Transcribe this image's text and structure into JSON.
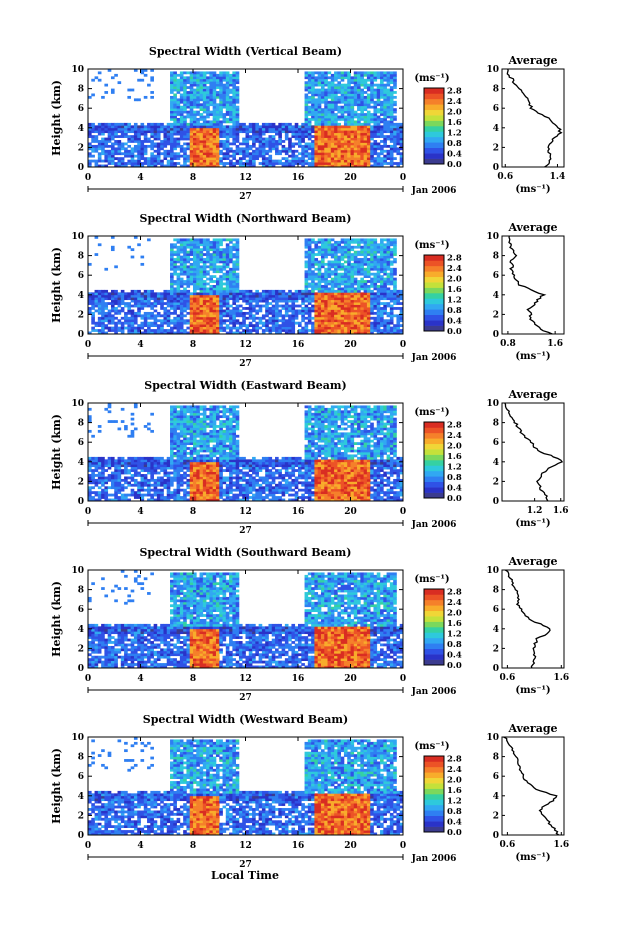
{
  "figure": {
    "xlabel": "Local Time",
    "date_label": "Jan 2006",
    "day_label": "27"
  },
  "colorbar": {
    "unit": "(ms⁻¹)",
    "ticks": [
      "0.0",
      "0.4",
      "0.8",
      "1.2",
      "1.6",
      "2.0",
      "2.4",
      "2.8"
    ],
    "colors": [
      "#3b3b8f",
      "#2a33c8",
      "#2f52e6",
      "#2f7ff2",
      "#31a8f2",
      "#2ec9dc",
      "#35d1a2",
      "#7bd85c",
      "#c4e13a",
      "#f0d637",
      "#f8ac2b",
      "#f5802a",
      "#ec5326",
      "#d92d22"
    ]
  },
  "chart_data": [
    {
      "type": "heatmap",
      "title": "Spectral Width (Vertical Beam)",
      "xlabel": "Local Time",
      "ylabel": "Height (km)",
      "x_ticks": [
        "0",
        "4",
        "8",
        "12",
        "16",
        "20",
        "0"
      ],
      "xlim": [
        0,
        24
      ],
      "y_ticks": [
        "0",
        "2",
        "4",
        "6",
        "8",
        "10"
      ],
      "ylim": [
        0,
        10
      ],
      "colorbar_range": [
        0.0,
        2.9
      ],
      "average_profile": {
        "title": "Average",
        "xlabel": "(ms⁻¹)",
        "x_ticks": [
          "0.6",
          "1.4"
        ],
        "xlim": [
          0.55,
          1.5
        ],
        "height_km": [
          0,
          0.5,
          1,
          1.5,
          2,
          2.5,
          3,
          3.5,
          4,
          4.5,
          5,
          5.5,
          6,
          6.5,
          7,
          7.5,
          8,
          8.5,
          9,
          9.5,
          10
        ],
        "width_ms": [
          1.2,
          1.28,
          1.3,
          1.27,
          1.25,
          1.3,
          1.36,
          1.44,
          1.42,
          1.32,
          1.25,
          1.1,
          1.0,
          0.98,
          0.95,
          0.88,
          0.8,
          0.75,
          0.7,
          0.65,
          0.62
        ]
      }
    },
    {
      "type": "heatmap",
      "title": "Spectral Width (Northward Beam)",
      "xlabel": "Local Time",
      "ylabel": "Height (km)",
      "x_ticks": [
        "0",
        "4",
        "8",
        "12",
        "16",
        "20",
        "0"
      ],
      "xlim": [
        0,
        24
      ],
      "y_ticks": [
        "0",
        "2",
        "4",
        "6",
        "8",
        "10"
      ],
      "ylim": [
        0,
        10
      ],
      "colorbar_range": [
        0.0,
        2.9
      ],
      "average_profile": {
        "title": "Average",
        "xlabel": "(ms⁻¹)",
        "x_ticks": [
          "0.8",
          "1.6"
        ],
        "xlim": [
          0.7,
          1.75
        ],
        "height_km": [
          0,
          0.5,
          1,
          1.5,
          2,
          2.5,
          3,
          3.5,
          4,
          4.5,
          5,
          5.5,
          6,
          6.5,
          7,
          7.5,
          8,
          8.5,
          9,
          9.5,
          10
        ],
        "width_ms": [
          1.55,
          1.35,
          1.25,
          1.2,
          1.18,
          1.15,
          1.25,
          1.3,
          1.4,
          1.2,
          1.0,
          0.95,
          0.9,
          0.85,
          0.88,
          0.85,
          0.92,
          0.88,
          0.85,
          0.82,
          0.8
        ]
      }
    },
    {
      "type": "heatmap",
      "title": "Spectral Width (Eastward Beam)",
      "xlabel": "Local Time",
      "ylabel": "Height (km)",
      "x_ticks": [
        "0",
        "4",
        "8",
        "12",
        "16",
        "20",
        "0"
      ],
      "xlim": [
        0,
        24
      ],
      "y_ticks": [
        "0",
        "2",
        "4",
        "6",
        "8",
        "10"
      ],
      "ylim": [
        0,
        10
      ],
      "colorbar_range": [
        0.0,
        2.9
      ],
      "average_profile": {
        "title": "Average",
        "xlabel": "(ms⁻¹)",
        "x_ticks": [
          "1.2",
          "1.6"
        ],
        "xlim": [
          0.7,
          1.65
        ],
        "height_km": [
          0,
          0.5,
          1,
          1.5,
          2,
          2.5,
          3,
          3.5,
          4,
          4.5,
          5,
          5.5,
          6,
          6.5,
          7,
          7.5,
          8,
          8.5,
          9,
          9.5,
          10
        ],
        "width_ms": [
          1.4,
          1.38,
          1.3,
          1.28,
          1.25,
          1.3,
          1.35,
          1.45,
          1.62,
          1.5,
          1.3,
          1.2,
          1.15,
          1.05,
          1.0,
          0.95,
          0.9,
          0.85,
          0.82,
          0.78,
          0.72
        ]
      }
    },
    {
      "type": "heatmap",
      "title": "Spectral Width (Southward Beam)",
      "xlabel": "Local Time",
      "ylabel": "Height (km)",
      "x_ticks": [
        "0",
        "4",
        "8",
        "12",
        "16",
        "20",
        "0"
      ],
      "xlim": [
        0,
        24
      ],
      "y_ticks": [
        "0",
        "2",
        "4",
        "6",
        "8",
        "10"
      ],
      "ylim": [
        0,
        10
      ],
      "colorbar_range": [
        0.0,
        2.9
      ],
      "average_profile": {
        "title": "Average",
        "xlabel": "(ms⁻¹)",
        "x_ticks": [
          "0.6",
          "1.6"
        ],
        "xlim": [
          0.5,
          1.65
        ],
        "height_km": [
          0,
          0.5,
          1,
          1.5,
          2,
          2.5,
          3,
          3.5,
          4,
          4.5,
          5,
          5.5,
          6,
          6.5,
          7,
          7.5,
          8,
          8.5,
          9,
          9.5,
          10
        ],
        "width_ms": [
          1.05,
          1.08,
          1.12,
          1.1,
          1.08,
          1.12,
          1.15,
          1.35,
          1.4,
          1.2,
          1.0,
          0.9,
          0.85,
          0.8,
          0.82,
          0.8,
          0.75,
          0.7,
          0.68,
          0.62,
          0.58
        ]
      }
    },
    {
      "type": "heatmap",
      "title": "Spectral Width (Westward Beam)",
      "xlabel": "Local Time",
      "ylabel": "Height (km)",
      "x_ticks": [
        "0",
        "4",
        "8",
        "12",
        "16",
        "20",
        "0"
      ],
      "xlim": [
        0,
        24
      ],
      "y_ticks": [
        "0",
        "2",
        "4",
        "6",
        "8",
        "10"
      ],
      "ylim": [
        0,
        10
      ],
      "colorbar_range": [
        0.0,
        2.9
      ],
      "average_profile": {
        "title": "Average",
        "xlabel": "(ms⁻¹)",
        "x_ticks": [
          "0.6",
          "1.6"
        ],
        "xlim": [
          0.5,
          1.65
        ],
        "height_km": [
          0,
          0.5,
          1,
          1.5,
          2,
          2.5,
          3,
          3.5,
          4,
          4.5,
          5,
          5.5,
          6,
          6.5,
          7,
          7.5,
          8,
          8.5,
          9,
          9.5,
          10
        ],
        "width_ms": [
          1.55,
          1.5,
          1.4,
          1.35,
          1.25,
          1.2,
          1.3,
          1.45,
          1.5,
          1.2,
          1.05,
          0.95,
          0.9,
          0.85,
          0.82,
          0.8,
          0.75,
          0.7,
          0.68,
          0.62,
          0.55
        ]
      }
    }
  ]
}
